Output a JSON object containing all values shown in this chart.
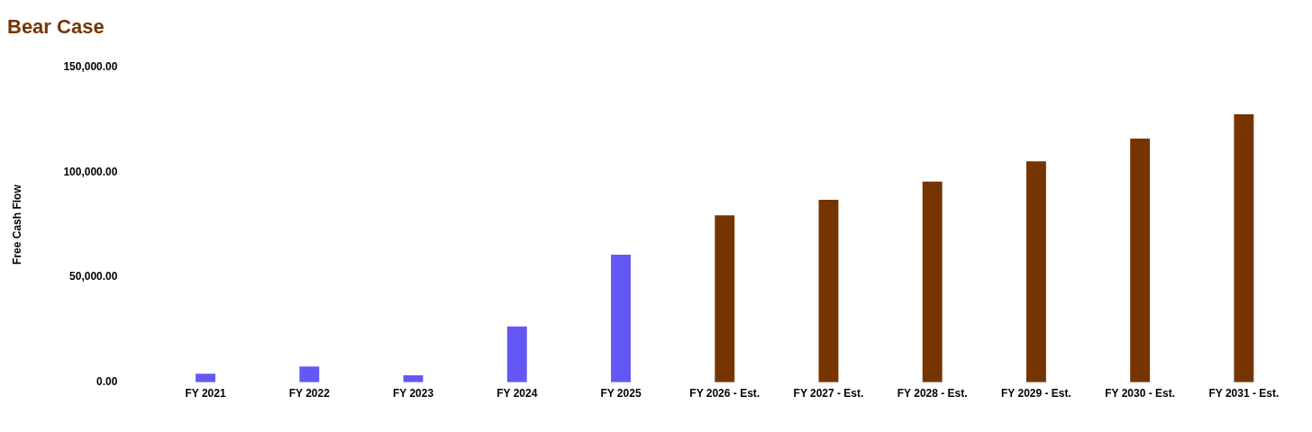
{
  "chart_data": {
    "type": "bar",
    "title": "Bear Case",
    "ylabel": "Free Cash Flow",
    "categories": [
      "FY 2021",
      "FY 2022",
      "FY 2023",
      "FY 2024",
      "FY 2025",
      "FY 2026 - Est.",
      "FY 2027 - Est.",
      "FY 2028 - Est.",
      "FY 2029 - Est.",
      "FY 2030 - Est.",
      "FY 2031 - Est."
    ],
    "values": [
      4100,
      7500,
      3300,
      26600,
      60700,
      79400,
      86800,
      95500,
      105100,
      115900,
      127500
    ],
    "colors": [
      "#6357f5",
      "#6357f5",
      "#6357f5",
      "#6357f5",
      "#6357f5",
      "#763500",
      "#763500",
      "#763500",
      "#763500",
      "#763500",
      "#763500"
    ],
    "ylim": [
      0,
      150000
    ],
    "yticks": [
      {
        "value": 0,
        "label": "0.00"
      },
      {
        "value": 50000,
        "label": "50,000.00"
      },
      {
        "value": 100000,
        "label": "100,000.00"
      },
      {
        "value": 150000,
        "label": "150,000.00"
      }
    ],
    "grid": false,
    "legend": false
  }
}
